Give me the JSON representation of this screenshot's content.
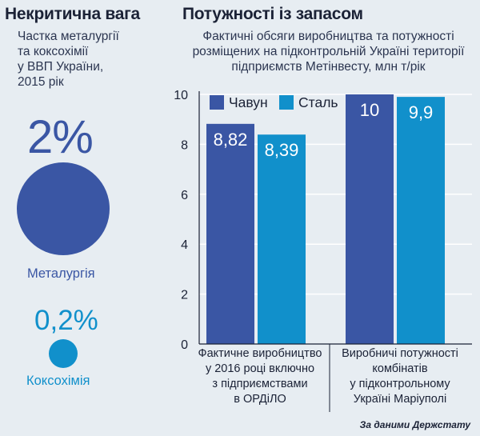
{
  "left": {
    "title": "Некритична вага",
    "subtitle_lines": [
      "Частка металургії",
      "та коксохімії",
      "у ВВП України,",
      "2015 рік"
    ],
    "metallurgy": {
      "value": "2%",
      "label": "Металургія",
      "color": "#3a56a4"
    },
    "coke": {
      "value": "0,2%",
      "label": "Коксохімія",
      "color": "#1190cb"
    }
  },
  "right": {
    "title": "Потужності із запасом",
    "subtitle_lines": [
      "Фактичні обсяги виробництва та потужності",
      "розміщених на підконтрольній Україні території",
      "підприємств Метінвесту, млн т/рік"
    ]
  },
  "chart_data": {
    "type": "bar",
    "title": "Потужності із запасом",
    "ylabel": "млн т/рік",
    "ylim": [
      0,
      10
    ],
    "yticks": [
      0,
      2,
      4,
      6,
      8,
      10
    ],
    "categories": [
      [
        "Фактичне виробництво",
        "у 2016 році включно",
        "з підприємствами",
        "в ОРДіЛО"
      ],
      [
        "Виробничі потужності",
        "комбінатів",
        "у підконтрольному",
        "Україні Маріуполі"
      ]
    ],
    "series": [
      {
        "name": "Чавун",
        "values": [
          8.82,
          10
        ],
        "labels": [
          "8,82",
          "10"
        ],
        "color": "#3a56a4"
      },
      {
        "name": "Сталь",
        "values": [
          8.39,
          9.9
        ],
        "labels": [
          "8,39",
          "9,9"
        ],
        "color": "#1190cb"
      }
    ],
    "legend_position": "top-left"
  },
  "source": "За даними Держстату"
}
